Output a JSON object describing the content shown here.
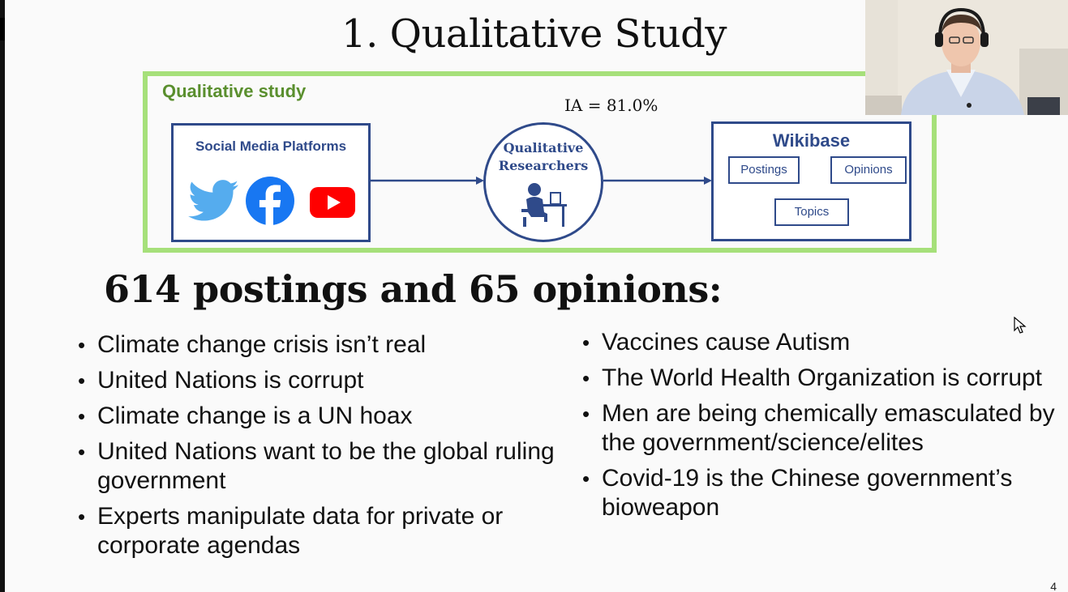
{
  "slide": {
    "title": "1. Qualitative Study",
    "page_number": "4"
  },
  "diagram": {
    "panel_title": "Qualitative study",
    "source_box_title": "Social Media Platforms",
    "source_logos": [
      "twitter-logo",
      "facebook-logo",
      "youtube-logo"
    ],
    "agreement_label": "IA = 81.0%",
    "researchers_label_line1": "Qualitative",
    "researchers_label_line2": "Researchers",
    "wikibase_title": "Wikibase",
    "wikibase_items": [
      "Postings",
      "Opinions",
      "Topics"
    ],
    "colors": {
      "panel_border": "#a6e07a",
      "panel_title": "#5a8f2e",
      "box_blue": "#2f4a8a"
    }
  },
  "subheading": "614 postings and 65 opinions:",
  "left_bullets": [
    "Climate change crisis isn’t real",
    "United Nations is corrupt",
    "Climate change is a UN hoax",
    "United Nations want to be the global ruling government",
    "Experts manipulate data for private or corporate agendas"
  ],
  "right_bullets": [
    "Vaccines cause Autism",
    "The World Health Organization is corrupt",
    "Men are being chemically emasculated by the government/science/elites",
    "Covid-19 is the Chinese government’s bioweapon"
  ]
}
